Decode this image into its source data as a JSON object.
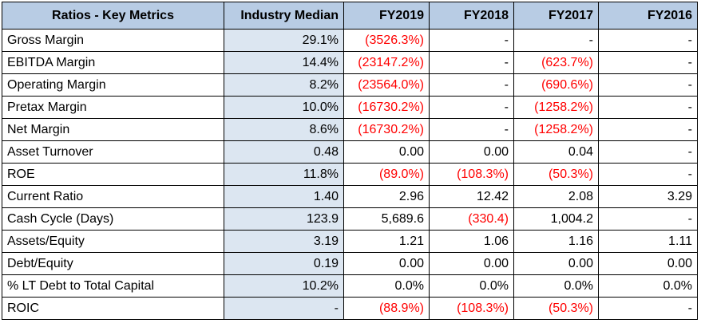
{
  "header": {
    "metric": "Ratios - Key Metrics",
    "median": "Industry Median",
    "y2019": "FY2019",
    "y2018": "FY2018",
    "y2017": "FY2017",
    "y2016": "FY2016"
  },
  "colors": {
    "header_bg": "#b8cce4",
    "median_bg": "#dce6f1",
    "negative": "#ff0000"
  },
  "rows": [
    {
      "metric": "Gross Margin",
      "median": "29.1%",
      "y2019": "(3526.3%)",
      "y2018": "-",
      "y2017": "-",
      "y2016": "-"
    },
    {
      "metric": "EBITDA Margin",
      "median": "14.4%",
      "y2019": "(23147.2%)",
      "y2018": "-",
      "y2017": "(623.7%)",
      "y2016": "-"
    },
    {
      "metric": "Operating Margin",
      "median": "8.2%",
      "y2019": "(23564.0%)",
      "y2018": "-",
      "y2017": "(690.6%)",
      "y2016": "-"
    },
    {
      "metric": "Pretax Margin",
      "median": "10.0%",
      "y2019": "(16730.2%)",
      "y2018": "-",
      "y2017": "(1258.2%)",
      "y2016": "-"
    },
    {
      "metric": "Net Margin",
      "median": "8.6%",
      "y2019": "(16730.2%)",
      "y2018": "-",
      "y2017": "(1258.2%)",
      "y2016": "-"
    },
    {
      "metric": "Asset Turnover",
      "median": "0.48",
      "y2019": "0.00",
      "y2018": "0.00",
      "y2017": "0.04",
      "y2016": "-"
    },
    {
      "metric": "ROE",
      "median": "11.8%",
      "y2019": "(89.0%)",
      "y2018": "(108.3%)",
      "y2017": "(50.3%)",
      "y2016": "-"
    },
    {
      "metric": "Current Ratio",
      "median": "1.40",
      "y2019": "2.96",
      "y2018": "12.42",
      "y2017": "2.08",
      "y2016": "3.29"
    },
    {
      "metric": "Cash Cycle (Days)",
      "median": "123.9",
      "y2019": "5,689.6",
      "y2018": "(330.4)",
      "y2017": "1,004.2",
      "y2016": "-"
    },
    {
      "metric": "Assets/Equity",
      "median": "3.19",
      "y2019": "1.21",
      "y2018": "1.06",
      "y2017": "1.16",
      "y2016": "1.11"
    },
    {
      "metric": "Debt/Equity",
      "median": "0.19",
      "y2019": "0.00",
      "y2018": "0.00",
      "y2017": "0.00",
      "y2016": "0.00"
    },
    {
      "metric": "% LT Debt to Total Capital",
      "median": "10.2%",
      "y2019": "0.0%",
      "y2018": "0.0%",
      "y2017": "0.0%",
      "y2016": "0.0%"
    },
    {
      "metric": "ROIC",
      "median": "-",
      "y2019": "(88.9%)",
      "y2018": "(108.3%)",
      "y2017": "(50.3%)",
      "y2016": "-"
    }
  ]
}
